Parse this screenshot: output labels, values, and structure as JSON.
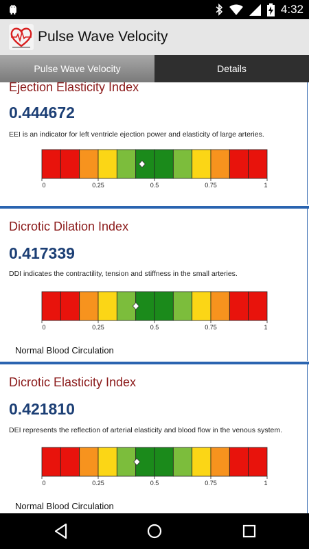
{
  "status_bar": {
    "time": "4:32",
    "icons": [
      "android-icon",
      "bluetooth-icon",
      "wifi-icon",
      "signal-icon",
      "battery-charging-icon"
    ]
  },
  "app_bar": {
    "title": "Pulse Wave Velocity",
    "logo_icon": "heart-pulse-icon"
  },
  "tabs": [
    {
      "label": "Pulse Wave Velocity",
      "active": true
    },
    {
      "label": "Details",
      "active": false
    }
  ],
  "scale": {
    "ticks": [
      "0",
      "0.25",
      "0.5",
      "0.75",
      "1"
    ],
    "segment_colors": [
      "#e8130c",
      "#e8130c",
      "#f7931e",
      "#fbd616",
      "#7cbd3c",
      "#1b8a1b",
      "#1b8a1b",
      "#7cbd3c",
      "#fbd616",
      "#f7931e",
      "#e8130c",
      "#e8130c"
    ]
  },
  "cards": [
    {
      "title": "Ejection Elasticity Index",
      "value": "0.444672",
      "marker": 0.444672,
      "description": "EEI is an indicator for left ventricle ejection power and elasticity of large arteries.",
      "status": ""
    },
    {
      "title": "Dicrotic Dilation Index",
      "value": "0.417339",
      "marker": 0.417339,
      "description": "DDI indicates the contractility, tension and stiffness in the small arteries.",
      "status": "Normal Blood Circulation"
    },
    {
      "title": "Dicrotic Elasticity Index",
      "value": "0.421810",
      "marker": 0.42181,
      "description": "DEI represents the reflection of arterial elasticity and blood flow in the venous system.",
      "status": "Normal Blood Circulation"
    }
  ],
  "nav_bar": {
    "icons": [
      "back-icon",
      "home-icon",
      "recents-icon"
    ]
  }
}
